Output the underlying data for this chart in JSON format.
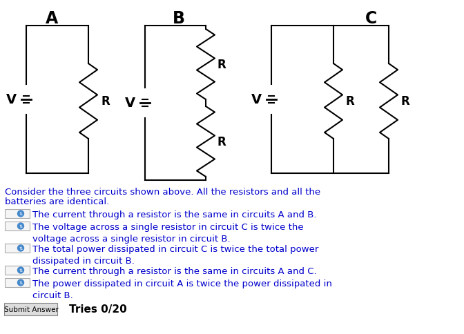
{
  "bg_color": "#ffffff",
  "title_color": "#000000",
  "text_color": "#0000cc",
  "circuit_color": "#000000",
  "label_A": "A",
  "label_B": "B",
  "label_C": "C",
  "label_V": "V",
  "label_R": "R",
  "description_line1": "Consider the three circuits shown above. All the resistors and all the",
  "description_line2": "batteries are identical.",
  "options": [
    "The current through a resistor is the same in circuits A and B.",
    "The voltage across a single resistor in circuit C is twice the\nvoltage across a single resistor in circuit B.",
    "The total power dissipated in circuit C is twice the total power\ndissipated in circuit B.",
    "The current through a resistor is the same in circuits A and C.",
    "The power dissipated in circuit A is twice the power dissipated in\ncircuit B."
  ],
  "submit_text": "Submit Answer",
  "tries_text": "Tries 0/20",
  "figsize": [
    6.72,
    4.85
  ],
  "dpi": 100
}
